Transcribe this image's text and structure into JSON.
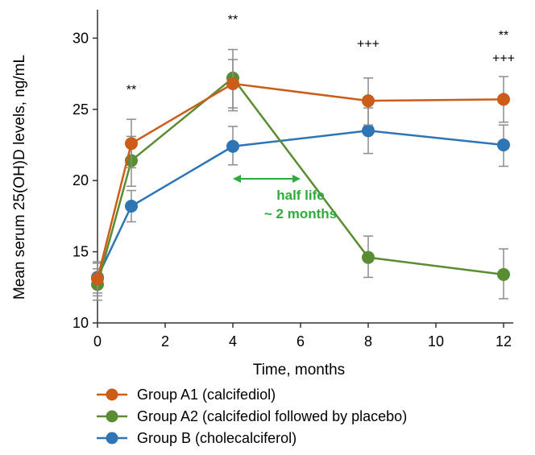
{
  "chart_data": {
    "type": "line",
    "title": "",
    "xlabel": "Time, months",
    "ylabel": "Mean serum 25(OH)D levels, ng/mL",
    "xlim": [
      0,
      12
    ],
    "ylim": [
      10,
      32
    ],
    "xticks": [
      0,
      2,
      4,
      6,
      8,
      10,
      12
    ],
    "yticks": [
      10,
      15,
      20,
      25,
      30
    ],
    "x": [
      0,
      1,
      4,
      8,
      12
    ],
    "series": [
      {
        "name": "Group A1 (calcifediol)",
        "color": "#cc5c1a",
        "values": [
          13.1,
          22.6,
          26.8,
          25.6,
          25.7
        ],
        "err_low": [
          11.9,
          20.9,
          24.9,
          23.9,
          24.1
        ],
        "err_high": [
          14.2,
          24.3,
          28.5,
          27.2,
          27.3
        ]
      },
      {
        "name": "Group A2 (calcifediol followed by placebo)",
        "color": "#5a8d33",
        "values": [
          12.7,
          21.4,
          27.2,
          14.6,
          13.4
        ],
        "err_low": [
          11.6,
          19.6,
          25.1,
          13.2,
          11.7
        ],
        "err_high": [
          13.8,
          23.1,
          29.2,
          16.1,
          15.2
        ]
      },
      {
        "name": "Group B (cholecalciferol)",
        "color": "#2e75b6",
        "values": [
          13.2,
          18.2,
          22.4,
          23.5,
          22.5
        ],
        "err_low": [
          12.1,
          17.1,
          21.1,
          21.9,
          21.0
        ],
        "err_high": [
          14.3,
          19.3,
          23.8,
          25.1,
          23.9
        ]
      }
    ],
    "annotations": [
      {
        "text": "**",
        "x": 1,
        "y": 26.1
      },
      {
        "text": "**",
        "x": 4,
        "y": 31.0
      },
      {
        "text": "+++",
        "x": 8,
        "y": 29.3
      },
      {
        "text": "**",
        "x": 12,
        "y": 29.9
      },
      {
        "text": "+++",
        "x": 12,
        "y": 28.3
      }
    ],
    "half_life": {
      "line1": "half life",
      "line2": "~ 2 months",
      "color": "#2eab3c",
      "from_x": 4,
      "to_x": 6
    },
    "legend": {
      "position": "bottom",
      "entries": [
        "Group A1 (calcifediol)",
        "Group A2 (calcifediol followed by placebo)",
        "Group B (cholecalciferol)"
      ]
    },
    "grid": false
  }
}
